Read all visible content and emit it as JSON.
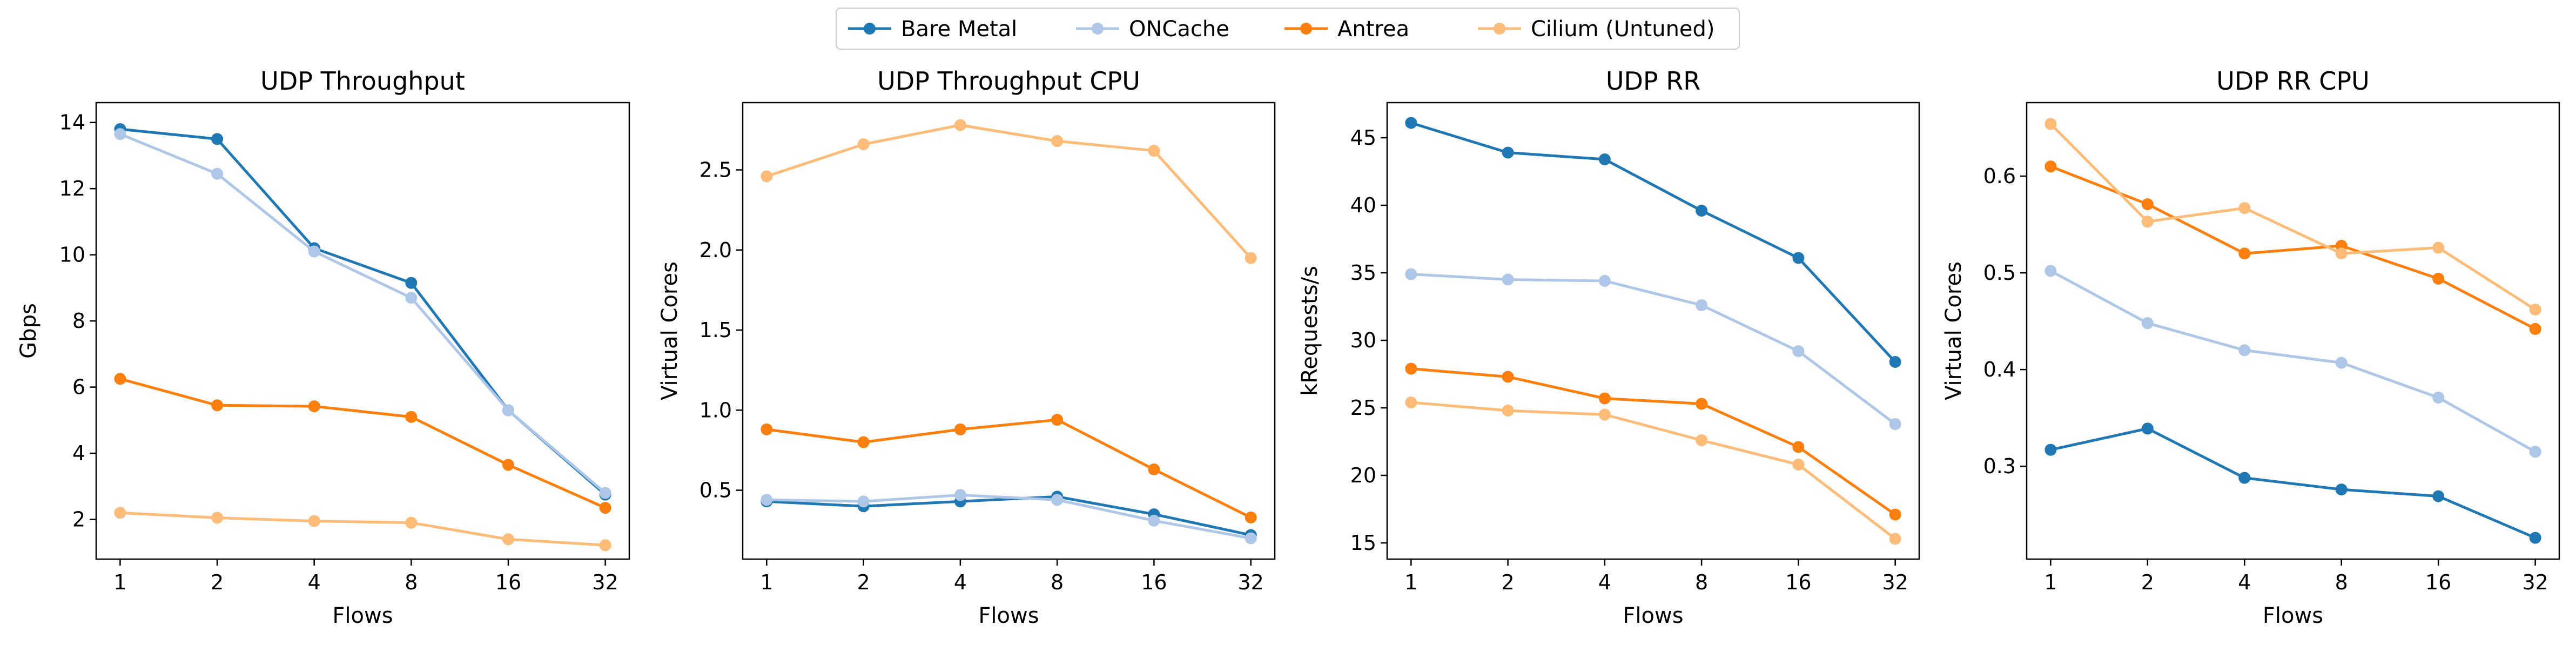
{
  "legend": {
    "items": [
      {
        "label": "Bare Metal",
        "color": "#1f77b4"
      },
      {
        "label": "ONCache",
        "color": "#aec7e8"
      },
      {
        "label": "Antrea",
        "color": "#ff7f0e"
      },
      {
        "label": "Cilium (Untuned)",
        "color": "#ffbb78"
      }
    ]
  },
  "chart_data": [
    {
      "type": "line",
      "title": "UDP Throughput",
      "xlabel": "Flows",
      "ylabel": "Gbps",
      "categories": [
        "1",
        "2",
        "4",
        "8",
        "16",
        "32"
      ],
      "ylim": [
        0.8,
        14.6
      ],
      "yticks": [
        2,
        4,
        6,
        8,
        10,
        12,
        14
      ],
      "ytick_labels": [
        "2",
        "4",
        "6",
        "8",
        "10",
        "12",
        "14"
      ],
      "grid": false,
      "legend_position": "top-center",
      "series": [
        {
          "name": "Bare Metal",
          "color": "#1f77b4",
          "values": [
            13.8,
            13.5,
            10.2,
            9.15,
            5.3,
            2.75
          ]
        },
        {
          "name": "ONCache",
          "color": "#aec7e8",
          "values": [
            13.65,
            12.45,
            10.1,
            8.7,
            5.3,
            2.8
          ]
        },
        {
          "name": "Antrea",
          "color": "#ff7f0e",
          "values": [
            6.25,
            5.45,
            5.42,
            5.1,
            3.65,
            2.35
          ]
        },
        {
          "name": "Cilium (Untuned)",
          "color": "#ffbb78",
          "values": [
            2.2,
            2.05,
            1.95,
            1.9,
            1.4,
            1.22
          ]
        }
      ]
    },
    {
      "type": "line",
      "title": "UDP Throughput CPU",
      "xlabel": "Flows",
      "ylabel": "Virtual Cores",
      "categories": [
        "1",
        "2",
        "4",
        "8",
        "16",
        "32"
      ],
      "ylim": [
        0.07,
        2.92
      ],
      "yticks": [
        0.5,
        1.0,
        1.5,
        2.0,
        2.5
      ],
      "ytick_labels": [
        "0.5",
        "1.0",
        "1.5",
        "2.0",
        "2.5"
      ],
      "grid": false,
      "series": [
        {
          "name": "Bare Metal",
          "color": "#1f77b4",
          "values": [
            0.43,
            0.4,
            0.43,
            0.46,
            0.35,
            0.22
          ]
        },
        {
          "name": "ONCache",
          "color": "#aec7e8",
          "values": [
            0.44,
            0.43,
            0.47,
            0.44,
            0.31,
            0.2
          ]
        },
        {
          "name": "Antrea",
          "color": "#ff7f0e",
          "values": [
            0.88,
            0.8,
            0.88,
            0.94,
            0.63,
            0.33
          ]
        },
        {
          "name": "Cilium (Untuned)",
          "color": "#ffbb78",
          "values": [
            2.46,
            2.66,
            2.78,
            2.68,
            2.62,
            1.95
          ]
        }
      ]
    },
    {
      "type": "line",
      "title": "UDP RR",
      "xlabel": "Flows",
      "ylabel": "kRequests/s",
      "categories": [
        "1",
        "2",
        "4",
        "8",
        "16",
        "32"
      ],
      "ylim": [
        13.8,
        47.6
      ],
      "yticks": [
        15,
        20,
        25,
        30,
        35,
        40,
        45
      ],
      "ytick_labels": [
        "15",
        "20",
        "25",
        "30",
        "35",
        "40",
        "45"
      ],
      "grid": false,
      "series": [
        {
          "name": "Bare Metal",
          "color": "#1f77b4",
          "values": [
            46.1,
            43.9,
            43.4,
            39.6,
            36.1,
            28.4
          ]
        },
        {
          "name": "ONCache",
          "color": "#aec7e8",
          "values": [
            34.9,
            34.5,
            34.4,
            32.6,
            29.2,
            23.8
          ]
        },
        {
          "name": "Antrea",
          "color": "#ff7f0e",
          "values": [
            27.9,
            27.3,
            25.7,
            25.3,
            22.1,
            17.1
          ]
        },
        {
          "name": "Cilium (Untuned)",
          "color": "#ffbb78",
          "values": [
            25.4,
            24.8,
            24.5,
            22.6,
            20.8,
            15.3
          ]
        }
      ]
    },
    {
      "type": "line",
      "title": "UDP RR CPU",
      "xlabel": "Flows",
      "ylabel": "Virtual Cores",
      "categories": [
        "1",
        "2",
        "4",
        "8",
        "16",
        "32"
      ],
      "ylim": [
        0.204,
        0.676
      ],
      "yticks": [
        0.3,
        0.4,
        0.5,
        0.6
      ],
      "ytick_labels": [
        "0.3",
        "0.4",
        "0.5",
        "0.6"
      ],
      "grid": false,
      "series": [
        {
          "name": "Bare Metal",
          "color": "#1f77b4",
          "values": [
            0.317,
            0.339,
            0.288,
            0.276,
            0.269,
            0.226
          ]
        },
        {
          "name": "ONCache",
          "color": "#aec7e8",
          "values": [
            0.502,
            0.448,
            0.42,
            0.407,
            0.371,
            0.315
          ]
        },
        {
          "name": "Antrea",
          "color": "#ff7f0e",
          "values": [
            0.61,
            0.571,
            0.52,
            0.528,
            0.494,
            0.442
          ]
        },
        {
          "name": "Cilium (Untuned)",
          "color": "#ffbb78",
          "values": [
            0.654,
            0.553,
            0.567,
            0.52,
            0.526,
            0.462
          ]
        }
      ]
    }
  ]
}
